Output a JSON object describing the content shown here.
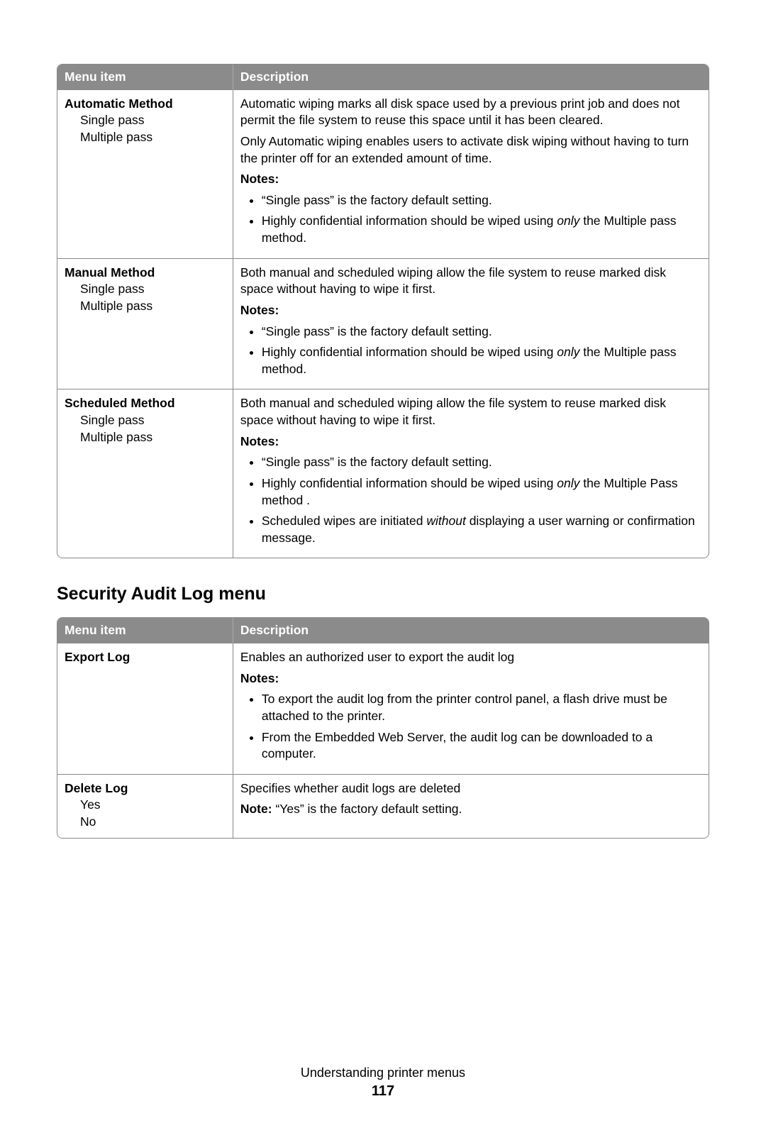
{
  "table1": {
    "headers": [
      "Menu item",
      "Description"
    ],
    "rows": [
      {
        "title": "Automatic Method",
        "subs": [
          "Single pass",
          "Multiple pass"
        ],
        "paras": [
          "Automatic wiping marks all disk space used by a previous print job and does not permit the file system to reuse this space until it has been cleared.",
          "Only Automatic wiping enables users to activate disk wiping without having to turn the printer off for an extended amount of time."
        ],
        "notes_label": "Notes:",
        "notes": [
          {
            "pre": "“Single pass” is the factory default setting."
          },
          {
            "pre": "Highly confidential information should be wiped using ",
            "em": "only",
            "post": " the Multiple pass method."
          }
        ]
      },
      {
        "title": "Manual Method",
        "subs": [
          "Single pass",
          "Multiple pass"
        ],
        "paras": [
          "Both manual and scheduled wiping allow the file system to reuse marked disk space without having to wipe it first."
        ],
        "notes_label": "Notes:",
        "notes": [
          {
            "pre": "“Single pass” is the factory default setting."
          },
          {
            "pre": "Highly confidential information should be wiped using ",
            "em": "only",
            "post": " the Multiple pass method."
          }
        ]
      },
      {
        "title": "Scheduled Method",
        "subs": [
          "Single pass",
          "Multiple pass"
        ],
        "paras": [
          "Both manual and scheduled wiping allow the file system to reuse marked disk space without having to wipe it first."
        ],
        "notes_label": "Notes:",
        "notes": [
          {
            "pre": "“Single pass” is the factory default setting."
          },
          {
            "pre": "Highly confidential information should be wiped using ",
            "em": "only",
            "post": " the Multiple Pass method ."
          },
          {
            "pre": "Scheduled wipes are initiated ",
            "em": "without",
            "post": " displaying a user warning or confirmation message."
          }
        ]
      }
    ]
  },
  "section_heading": "Security Audit Log menu",
  "table2": {
    "headers": [
      "Menu item",
      "Description"
    ],
    "rows": [
      {
        "title": "Export Log",
        "subs": [],
        "paras": [
          "Enables an authorized user to export the audit log"
        ],
        "notes_label": "Notes:",
        "notes": [
          {
            "pre": "To export the audit log from the printer control panel, a flash drive must be attached to the printer."
          },
          {
            "pre": "From the Embedded Web Server, the audit log can be downloaded to a computer."
          }
        ]
      },
      {
        "title": "Delete Log",
        "subs": [
          "Yes",
          "No"
        ],
        "paras": [
          "Specifies whether audit logs are deleted"
        ],
        "inline_note_label": "Note:",
        "inline_note_text": " “Yes” is the factory default setting."
      }
    ]
  },
  "footer": {
    "text": "Understanding printer menus",
    "page": "117"
  }
}
